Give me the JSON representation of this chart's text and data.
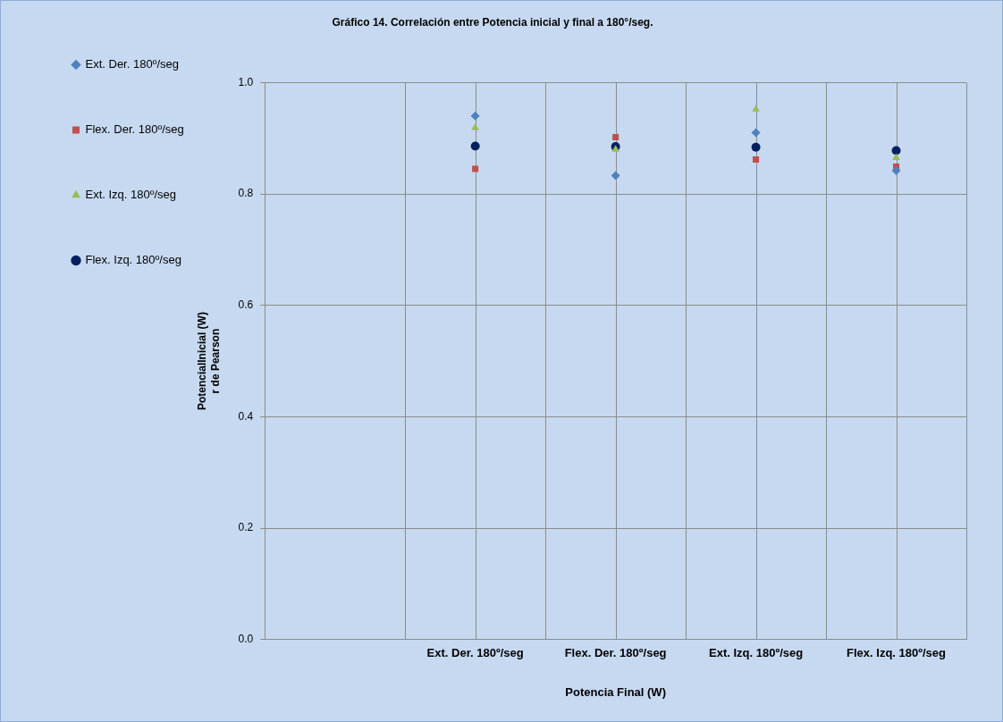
{
  "chart_data": {
    "type": "scatter",
    "title": "Gráfico 14. Correlación entre Potencia inicial y final a 180°/seg.",
    "xlabel": "Potencia Final (W)",
    "ylabel": "PotencialInicial (W)\nr de Pearson",
    "categories": [
      null,
      "Ext. Der. 180º/seg",
      "Flex. Der. 180º/seg",
      "Ext. Izq. 180º/seg",
      "Flex. Izq. 180º/seg"
    ],
    "series": [
      {
        "name": "Ext. Der. 180º/seg",
        "color": "#4f81bd",
        "marker": "diamond",
        "values": [
          null,
          0.94,
          0.833,
          0.91,
          0.842
        ]
      },
      {
        "name": "Flex. Der. 180º/seg",
        "color": "#c0504d",
        "marker": "square",
        "values": [
          null,
          0.845,
          0.902,
          0.862,
          0.849
        ]
      },
      {
        "name": "Ext. Izq. 180º/seg",
        "color": "#9bbb59",
        "marker": "triangle",
        "values": [
          null,
          0.919,
          0.88,
          0.952,
          0.865
        ]
      },
      {
        "name": "Flex. Izq. 180º/seg",
        "color": "#002060",
        "marker": "circle",
        "values": [
          null,
          0.886,
          0.885,
          0.884,
          0.878
        ]
      }
    ],
    "ylim": [
      0,
      1
    ],
    "yticks": [
      {
        "value": 0,
        "label": "0.0"
      },
      {
        "value": 0.2,
        "label": "0.2"
      },
      {
        "value": 0.4,
        "label": "0.4"
      },
      {
        "value": 0.6,
        "label": "0.6"
      },
      {
        "value": 0.8,
        "label": "0.8"
      },
      {
        "value": 1,
        "label": "1.0"
      }
    ],
    "grid": true,
    "legend": "left"
  }
}
